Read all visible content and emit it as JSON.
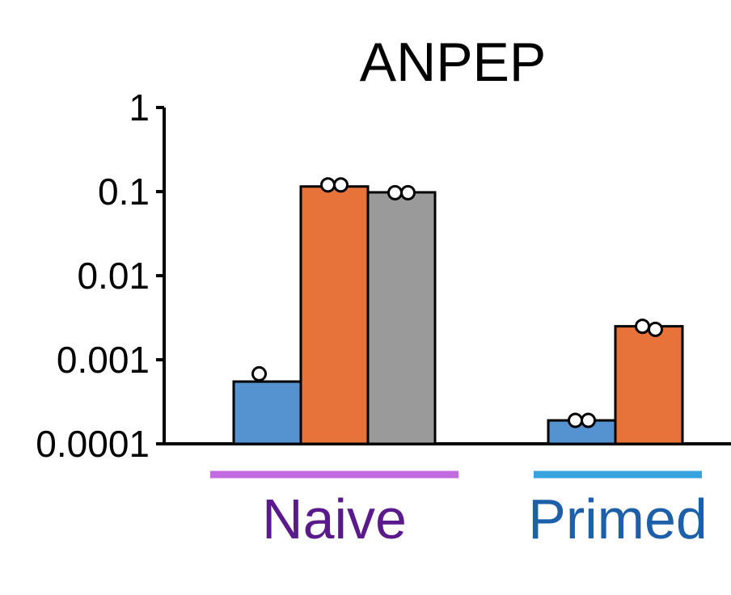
{
  "chart_data": {
    "type": "bar",
    "title": "ANPEP",
    "yscale": "log",
    "ylim": [
      0.0001,
      1
    ],
    "yticks": [
      {
        "value": 1,
        "label": "1"
      },
      {
        "value": 0.1,
        "label": "0.1"
      },
      {
        "value": 0.01,
        "label": "0.01"
      },
      {
        "value": 0.001,
        "label": "0.001"
      },
      {
        "value": 0.0001,
        "label": "0.0001"
      }
    ],
    "groups": [
      {
        "label": "Naive",
        "label_color": "#5a1a8c",
        "underline_color": "#c26be0",
        "bars": [
          {
            "color": "#5592d0",
            "value": 0.00055,
            "points": [
              0.00068
            ]
          },
          {
            "color": "#e8733a",
            "value": 0.115,
            "points": [
              0.12,
              0.12
            ]
          },
          {
            "color": "#9a9a9a",
            "value": 0.098,
            "points": [
              0.097,
              0.097
            ]
          }
        ]
      },
      {
        "label": "Primed",
        "label_color": "#1d5fa8",
        "underline_color": "#37a3de",
        "bars": [
          {
            "color": "#5592d0",
            "value": 0.00019,
            "points": [
              0.00019,
              0.00019
            ]
          },
          {
            "color": "#e8733a",
            "value": 0.0025,
            "points": [
              0.0025,
              0.0023
            ]
          }
        ]
      }
    ]
  }
}
